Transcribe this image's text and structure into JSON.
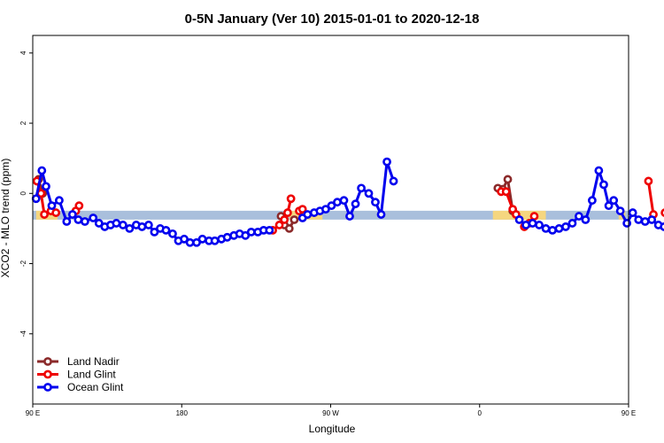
{
  "chart_data": {
    "type": "line",
    "title": "0-5N January (Ver 10)   2015-01-01 to 2020-12-18",
    "xlabel": "Longitude",
    "ylabel": "XCO2 - MLO trend (ppm)",
    "xlim": [
      90,
      450
    ],
    "ylim": [
      -6,
      4.5
    ],
    "x_ticks": [
      {
        "value": 90,
        "label": "90 E"
      },
      {
        "value": 180,
        "label": "180"
      },
      {
        "value": 270,
        "label": "90 W"
      },
      {
        "value": 360,
        "label": "0"
      },
      {
        "value": 450,
        "label": "90 E"
      },
      {
        "value": 540,
        "label": "180"
      }
    ],
    "y_ticks": [
      {
        "value": -4,
        "label": "-4"
      },
      {
        "value": -2,
        "label": "-2"
      },
      {
        "value": 0,
        "label": "0"
      },
      {
        "value": 2,
        "label": "2"
      },
      {
        "value": 4,
        "label": "4"
      }
    ],
    "band": {
      "y": -0.62,
      "ocean_color": "#a9bfdc",
      "land_color": "#f5d67f",
      "land_segments": [
        [
          92,
          105
        ],
        [
          245,
          265
        ],
        [
          368,
          400
        ],
        [
          444,
          448
        ]
      ]
    },
    "legend_position": "bottom-left",
    "series": [
      {
        "name": "Land Nadir",
        "color": "#8b2a2a",
        "segments": [
          {
            "x": [
              93.5,
              96
            ],
            "y": [
              0.4,
              0.0
            ]
          },
          {
            "x": [
              240,
              242,
              245,
              248
            ],
            "y": [
              -0.65,
              -0.9,
              -1.0,
              -0.75
            ]
          },
          {
            "x": [
              371,
              374,
              377,
              380
            ],
            "y": [
              0.15,
              0.12,
              0.4,
              -0.5
            ]
          }
        ]
      },
      {
        "name": "Land Glint",
        "color": "#ee0000",
        "segments": [
          {
            "x": [
              92.5,
              95,
              97,
              101,
              104
            ],
            "y": [
              0.35,
              0.0,
              -0.6,
              -0.5,
              -0.55
            ]
          },
          {
            "x": [
              116,
              118
            ],
            "y": [
              -0.5,
              -0.35
            ]
          },
          {
            "x": [
              235,
              239,
              242,
              244,
              246
            ],
            "y": [
              -1.05,
              -0.9,
              -0.75,
              -0.55,
              -0.15
            ]
          },
          {
            "x": [
              251,
              253
            ],
            "y": [
              -0.5,
              -0.45
            ]
          },
          {
            "x": [
              373,
              376,
              380,
              382
            ],
            "y": [
              0.05,
              0.05,
              -0.45,
              -0.6
            ]
          },
          {
            "x": [
              387,
              390,
              393
            ],
            "y": [
              -0.95,
              -0.85,
              -0.65
            ]
          },
          {
            "x": [
              462,
              465
            ],
            "y": [
              0.35,
              -0.6
            ]
          },
          {
            "x": [
              472,
              474,
              477,
              481
            ],
            "y": [
              -0.55,
              -0.5,
              -0.65,
              -0.35
            ]
          }
        ]
      },
      {
        "name": "Ocean Glint",
        "color": "#0000ee",
        "segments": [
          {
            "x": [
              92,
              95.5,
              98,
              101.5,
              106,
              110.5,
              114,
              117.5,
              121.5,
              126.5,
              130,
              133.5,
              137,
              140.5,
              144.5,
              148.5,
              152.5,
              156,
              160,
              163.5,
              167,
              170.5,
              174.5,
              178,
              181.5,
              185,
              189,
              192.5,
              196.5,
              200,
              204,
              207.5,
              211.5,
              215,
              218.5,
              222,
              226,
              229.5,
              233
            ],
            "y": [
              -0.15,
              0.65,
              0.2,
              -0.35,
              -0.2,
              -0.8,
              -0.6,
              -0.75,
              -0.8,
              -0.7,
              -0.85,
              -0.95,
              -0.9,
              -0.85,
              -0.9,
              -1.0,
              -0.9,
              -0.95,
              -0.9,
              -1.1,
              -1.0,
              -1.05,
              -1.15,
              -1.35,
              -1.3,
              -1.4,
              -1.4,
              -1.3,
              -1.35,
              -1.35,
              -1.3,
              -1.25,
              -1.2,
              -1.15,
              -1.2,
              -1.1,
              -1.1,
              -1.05,
              -1.05
            ]
          },
          {
            "x": [
              253,
              256,
              260,
              263.5,
              267,
              270.5,
              274,
              278,
              281.5,
              285,
              288.5,
              293,
              297,
              300.5,
              304,
              308
            ],
            "y": [
              -0.7,
              -0.6,
              -0.55,
              -0.5,
              -0.45,
              -0.35,
              -0.25,
              -0.2,
              -0.65,
              -0.3,
              0.15,
              0.0,
              -0.25,
              -0.6,
              0.9,
              0.35
            ]
          },
          {
            "x": [
              384,
              388,
              392,
              396,
              400,
              404,
              408,
              412,
              416,
              420,
              424,
              428,
              432,
              435,
              438,
              441,
              445,
              449,
              452.5,
              456,
              460,
              464,
              468,
              471.5,
              475,
              479,
              482.5,
              486,
              490,
              494,
              498,
              502,
              506,
              510,
              514,
              518
            ],
            "y": [
              -0.75,
              -0.9,
              -0.85,
              -0.9,
              -1.0,
              -1.05,
              -1.0,
              -0.95,
              -0.85,
              -0.65,
              -0.75,
              -0.2,
              0.65,
              0.25,
              -0.35,
              -0.2,
              -0.5,
              -0.85,
              -0.55,
              -0.75,
              -0.8,
              -0.75,
              -0.9,
              -0.95,
              -0.9,
              -0.85,
              -0.9,
              -0.95,
              -0.9,
              -0.95,
              -0.9,
              -0.95,
              -0.9,
              -1.0,
              -0.9,
              -0.95
            ]
          }
        ]
      }
    ]
  }
}
